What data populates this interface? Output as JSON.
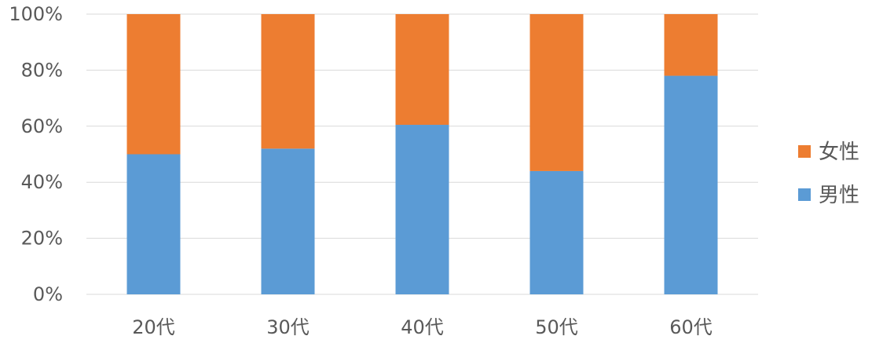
{
  "chart_data": {
    "type": "bar",
    "stacked": true,
    "percent": true,
    "categories": [
      "20代",
      "30代",
      "40代",
      "50代",
      "60代"
    ],
    "series": [
      {
        "name": "男性",
        "color": "#5b9bd5",
        "values": [
          50,
          52,
          60.5,
          44,
          78
        ]
      },
      {
        "name": "女性",
        "color": "#ed7d31",
        "values": [
          50,
          48,
          39.5,
          56,
          22
        ]
      }
    ],
    "yticks": [
      "0%",
      "20%",
      "40%",
      "60%",
      "80%",
      "100%"
    ],
    "ylim": [
      0,
      100
    ],
    "grid": true,
    "legend_position": "right",
    "legend": [
      {
        "name": "女性",
        "color": "#ed7d31"
      },
      {
        "name": "男性",
        "color": "#5b9bd5"
      }
    ]
  }
}
